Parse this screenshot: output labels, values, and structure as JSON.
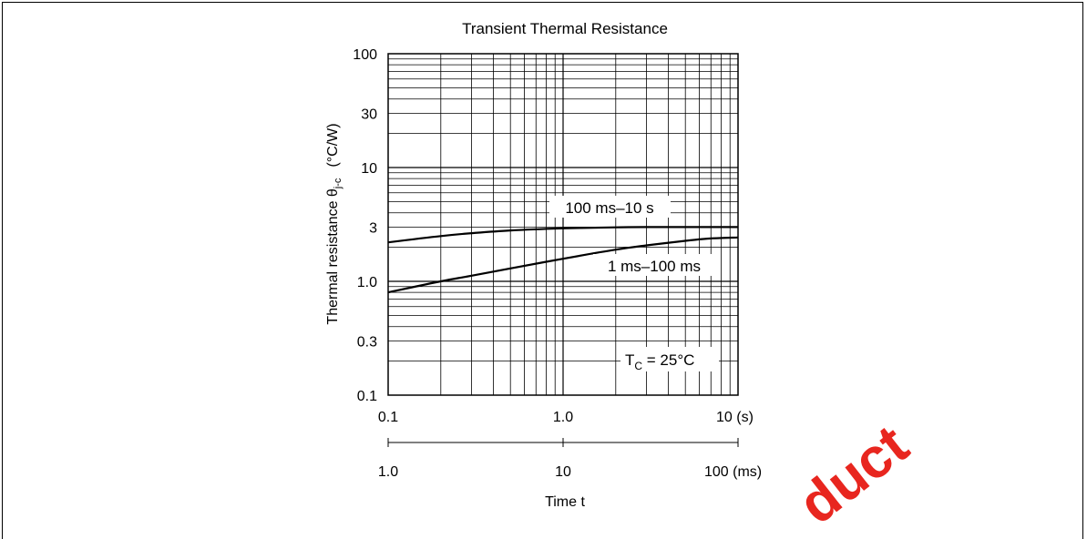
{
  "chart_data": {
    "type": "line",
    "title": "Transient Thermal Resistance",
    "ylabel_main": "Thermal resistance  θ",
    "ylabel_sub": "j-c",
    "ylabel_unit": "(°C/W)",
    "xlabel": "Time  t",
    "x_scale": "log",
    "y_scale": "log",
    "xlim": [
      0.1,
      10
    ],
    "ylim": [
      0.1,
      100
    ],
    "grid": true,
    "y_ticks": [
      {
        "value": 100,
        "label": "100"
      },
      {
        "value": 30,
        "label": "30"
      },
      {
        "value": 10,
        "label": "10"
      },
      {
        "value": 3,
        "label": "3"
      },
      {
        "value": 1,
        "label": "1.0"
      },
      {
        "value": 0.3,
        "label": "0.3"
      },
      {
        "value": 0.1,
        "label": "0.1"
      }
    ],
    "x_ticks_seconds": [
      {
        "value": 0.1,
        "label": "0.1"
      },
      {
        "value": 1,
        "label": "1.0"
      },
      {
        "value": 10,
        "label": "10 (s)"
      }
    ],
    "x_ticks_milliseconds": [
      {
        "value": 0.1,
        "label": "1.0"
      },
      {
        "value": 1,
        "label": "10"
      },
      {
        "value": 10,
        "label": "100 (ms)"
      }
    ],
    "series": [
      {
        "name": "100 ms–10 s",
        "x": [
          0.1,
          0.2,
          0.3,
          0.5,
          1,
          2,
          3,
          5,
          10
        ],
        "y": [
          2.2,
          2.5,
          2.65,
          2.8,
          2.92,
          2.98,
          3.0,
          3.0,
          3.0
        ]
      },
      {
        "name": "1 ms–100 ms",
        "x": [
          0.1,
          0.2,
          0.3,
          0.5,
          1,
          2,
          3,
          5,
          7,
          10
        ],
        "y": [
          0.8,
          1.0,
          1.12,
          1.3,
          1.58,
          1.9,
          2.07,
          2.27,
          2.38,
          2.43
        ]
      }
    ],
    "annotations": [
      {
        "label": "100 ms–10 s"
      },
      {
        "label": "1 ms–100 ms"
      },
      {
        "label_main": "T",
        "label_sub": "C",
        "label_rest": " = 25°C"
      }
    ]
  },
  "watermark": {
    "text": "duct",
    "color": "#e8261f"
  }
}
